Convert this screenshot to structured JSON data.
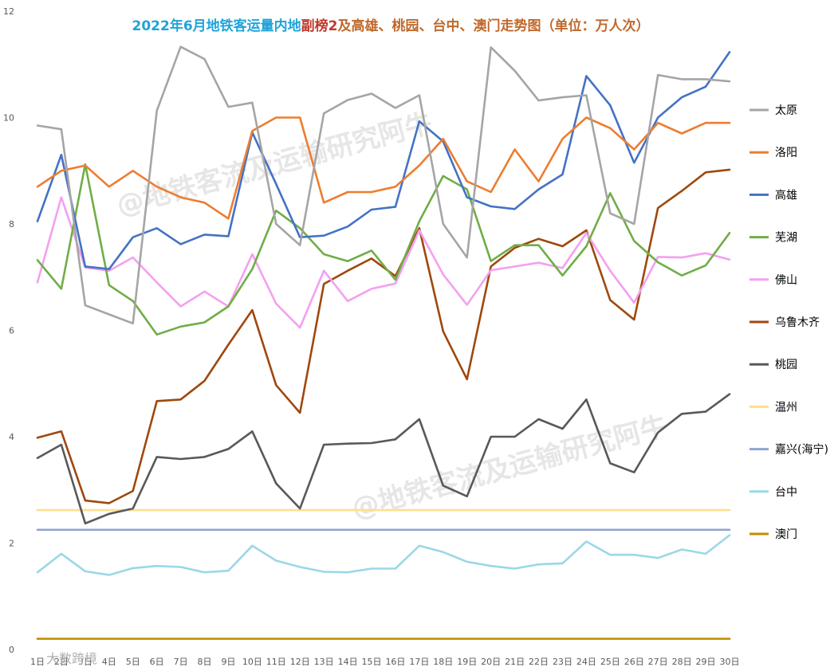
{
  "chart_data": {
    "type": "line",
    "title_parts": [
      {
        "text": "2022年6月地铁客运量内地",
        "color": "#1fa3d9"
      },
      {
        "text": "副榜2",
        "color": "#c0392b"
      },
      {
        "text": "及高雄、桃园、台中、澳门走势图（单位：万人次）",
        "color": "#c0692b"
      }
    ],
    "categories": [
      "1日",
      "2日",
      "3日",
      "4日",
      "5日",
      "6日",
      "7日",
      "8日",
      "9日",
      "10日",
      "11日",
      "12日",
      "13日",
      "14日",
      "15日",
      "16日",
      "17日",
      "18日",
      "19日",
      "20日",
      "21日",
      "22日",
      "23日",
      "24日",
      "25日",
      "26日",
      "27日",
      "28日",
      "29日",
      "30日"
    ],
    "y_ticks": [
      "0",
      "2",
      "4",
      "6",
      "8",
      "10",
      "12"
    ],
    "ylim": [
      0,
      12
    ],
    "legend_position": "right",
    "grid": false,
    "series": [
      {
        "name": "太原",
        "color": "#a5a5a5",
        "values": [
          9.85,
          9.78,
          6.47,
          6.3,
          6.13,
          10.13,
          11.33,
          11.1,
          10.2,
          10.28,
          8.0,
          7.6,
          10.08,
          10.33,
          10.45,
          10.18,
          10.42,
          8.0,
          7.37,
          11.32,
          10.88,
          10.32,
          10.38,
          10.42,
          8.2,
          8.0,
          10.8,
          10.72,
          10.72,
          10.68
        ]
      },
      {
        "name": "洛阳",
        "color": "#ed7d31",
        "values": [
          8.7,
          9.0,
          9.1,
          8.7,
          9.0,
          8.7,
          8.5,
          8.4,
          8.1,
          9.75,
          10.0,
          10.0,
          8.4,
          8.6,
          8.6,
          8.7,
          9.1,
          9.6,
          8.8,
          8.6,
          9.4,
          8.8,
          9.6,
          10.0,
          9.8,
          9.4,
          9.9,
          9.7,
          9.9,
          9.9
        ]
      },
      {
        "name": "高雄",
        "color": "#4472c4",
        "values": [
          8.05,
          9.3,
          7.2,
          7.15,
          7.75,
          7.92,
          7.62,
          7.8,
          7.77,
          9.72,
          8.75,
          7.75,
          7.78,
          7.95,
          8.27,
          8.32,
          9.93,
          9.55,
          8.5,
          8.33,
          8.28,
          8.65,
          8.93,
          10.78,
          10.23,
          9.15,
          10.0,
          10.38,
          10.58,
          11.23
        ]
      },
      {
        "name": "芜湖",
        "color": "#70ad47",
        "values": [
          7.32,
          6.78,
          9.12,
          6.85,
          6.55,
          5.92,
          6.07,
          6.15,
          6.45,
          7.15,
          8.25,
          7.92,
          7.43,
          7.3,
          7.5,
          6.95,
          8.05,
          8.9,
          8.65,
          7.3,
          7.6,
          7.6,
          7.03,
          7.58,
          8.58,
          7.68,
          7.28,
          7.03,
          7.22,
          7.83
        ]
      },
      {
        "name": "佛山",
        "color": "#f4a0f0",
        "values": [
          6.9,
          8.5,
          7.18,
          7.12,
          7.37,
          6.9,
          6.45,
          6.73,
          6.45,
          7.43,
          6.5,
          6.05,
          7.12,
          6.55,
          6.78,
          6.88,
          7.88,
          7.05,
          6.48,
          7.13,
          7.2,
          7.27,
          7.17,
          7.83,
          7.12,
          6.52,
          7.38,
          7.37,
          7.45,
          7.33
        ]
      },
      {
        "name": "乌鲁木齐",
        "color": "#9e480e",
        "values": [
          3.98,
          4.1,
          2.8,
          2.75,
          2.98,
          4.67,
          4.7,
          5.05,
          5.73,
          6.38,
          4.97,
          4.45,
          6.87,
          7.12,
          7.35,
          7.02,
          7.92,
          5.98,
          5.08,
          7.2,
          7.55,
          7.72,
          7.58,
          7.88,
          6.57,
          6.2,
          8.3,
          8.62,
          8.97,
          9.02
        ]
      },
      {
        "name": "桃园",
        "color": "#595959",
        "values": [
          3.6,
          3.85,
          2.37,
          2.55,
          2.65,
          3.62,
          3.58,
          3.62,
          3.77,
          4.1,
          3.12,
          2.65,
          3.85,
          3.87,
          3.88,
          3.95,
          4.33,
          3.08,
          2.88,
          4.0,
          4.0,
          4.33,
          4.15,
          4.7,
          3.5,
          3.33,
          4.08,
          4.43,
          4.47,
          4.8
        ]
      },
      {
        "name": "温州",
        "color": "#ffdf8c",
        "values": [
          2.62,
          2.62,
          2.62,
          2.62,
          2.62,
          2.62,
          2.62,
          2.62,
          2.62,
          2.62,
          2.62,
          2.62,
          2.62,
          2.62,
          2.62,
          2.62,
          2.62,
          2.62,
          2.62,
          2.62,
          2.62,
          2.62,
          2.62,
          2.62,
          2.62,
          2.62,
          2.62,
          2.62,
          2.62,
          2.62
        ]
      },
      {
        "name": "嘉兴(海宁)",
        "color": "#8fa4cf",
        "values": [
          2.25,
          2.25,
          2.25,
          2.25,
          2.25,
          2.25,
          2.25,
          2.25,
          2.25,
          2.25,
          2.25,
          2.25,
          2.25,
          2.25,
          2.25,
          2.25,
          2.25,
          2.25,
          2.25,
          2.25,
          2.25,
          2.25,
          2.25,
          2.25,
          2.25,
          2.25,
          2.25,
          2.25,
          2.25,
          2.25
        ]
      },
      {
        "name": "台中",
        "color": "#9bd7e8",
        "values": [
          1.45,
          1.8,
          1.47,
          1.4,
          1.53,
          1.57,
          1.55,
          1.45,
          1.48,
          1.95,
          1.67,
          1.55,
          1.46,
          1.45,
          1.52,
          1.52,
          1.95,
          1.83,
          1.65,
          1.57,
          1.52,
          1.6,
          1.62,
          2.03,
          1.78,
          1.78,
          1.72,
          1.88,
          1.8,
          2.15
        ]
      },
      {
        "name": "澳门",
        "color": "#bf9000",
        "values": [
          0.2,
          0.2,
          0.2,
          0.2,
          0.2,
          0.2,
          0.2,
          0.2,
          0.2,
          0.2,
          0.2,
          0.2,
          0.2,
          0.2,
          0.2,
          0.2,
          0.2,
          0.2,
          0.2,
          0.2,
          0.2,
          0.2,
          0.2,
          0.2,
          0.2,
          0.2,
          0.2,
          0.2,
          0.2,
          0.2
        ]
      }
    ]
  },
  "watermarks": [
    "@地铁客流及运输研究阿牛",
    "@地铁客流及运输研究阿牛"
  ],
  "footer_logo_text": "大数跨境"
}
